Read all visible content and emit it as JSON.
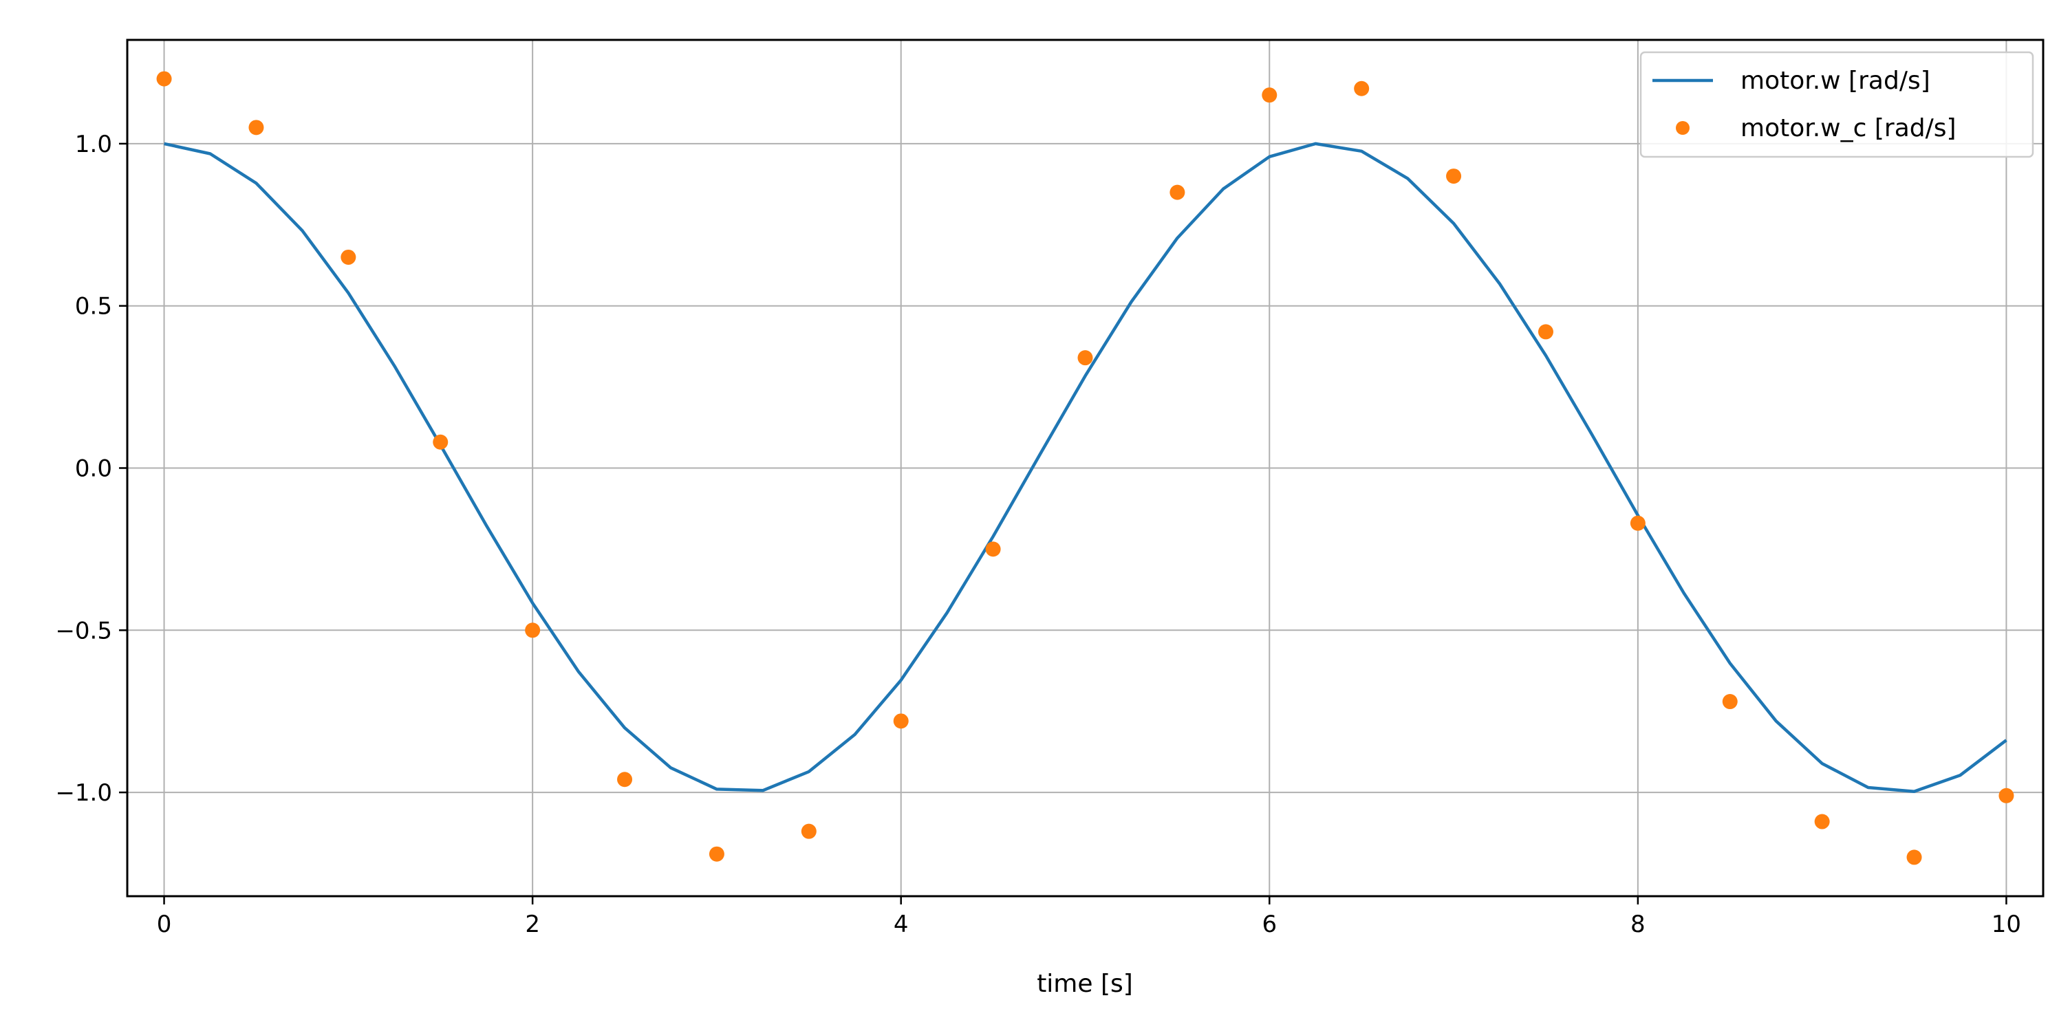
{
  "chart_data": {
    "type": "line",
    "xlabel": "time [s]",
    "ylabel": "",
    "xlim": [
      -0.2,
      10.2
    ],
    "ylim": [
      -1.32,
      1.32
    ],
    "x_ticks": [
      0,
      2,
      4,
      6,
      8,
      10
    ],
    "x_tick_labels": [
      "0",
      "2",
      "4",
      "6",
      "8",
      "10"
    ],
    "y_ticks": [
      1.0,
      0.5,
      0.0,
      -0.5,
      -1.0
    ],
    "y_tick_labels": [
      "1.0",
      "0.5",
      "0.0",
      "−0.5",
      "−1.0"
    ],
    "grid": true,
    "legend_position": "top-right",
    "series": [
      {
        "name": "motor.w [rad/s]",
        "kind": "line",
        "color": "#1f77b4",
        "x": [
          0,
          0.25,
          0.5,
          0.75,
          1,
          1.25,
          1.5,
          1.75,
          2,
          2.25,
          2.5,
          2.75,
          3,
          3.25,
          3.5,
          3.75,
          4,
          4.25,
          4.5,
          4.75,
          5,
          5.25,
          5.5,
          5.75,
          6,
          6.25,
          6.5,
          6.75,
          7,
          7.25,
          7.5,
          7.75,
          8,
          8.25,
          8.5,
          8.75,
          9,
          9.25,
          9.5,
          9.75,
          10
        ],
        "y": [
          1.0,
          0.969,
          0.878,
          0.732,
          0.54,
          0.315,
          0.071,
          -0.178,
          -0.416,
          -0.628,
          -0.801,
          -0.924,
          -0.99,
          -0.994,
          -0.936,
          -0.821,
          -0.654,
          -0.446,
          -0.211,
          0.038,
          0.284,
          0.512,
          0.709,
          0.861,
          0.96,
          1.0,
          0.977,
          0.893,
          0.754,
          0.568,
          0.347,
          0.104,
          -0.146,
          -0.386,
          -0.602,
          -0.78,
          -0.911,
          -0.985,
          -0.997,
          -0.947,
          -0.839
        ]
      },
      {
        "name": "motor.w_c [rad/s]",
        "kind": "scatter",
        "color": "#ff7f0e",
        "x": [
          0,
          0.5,
          1,
          1.5,
          2,
          2.5,
          3,
          3.5,
          4,
          4.5,
          5,
          5.5,
          6,
          6.5,
          7,
          7.5,
          8,
          8.5,
          9,
          9.5,
          10
        ],
        "y": [
          1.2,
          1.05,
          0.65,
          0.08,
          -0.5,
          -0.96,
          -1.19,
          -1.12,
          -0.78,
          -0.25,
          0.34,
          0.85,
          1.15,
          1.17,
          0.9,
          0.42,
          -0.17,
          -0.72,
          -1.09,
          -1.2,
          -1.01
        ]
      }
    ]
  }
}
